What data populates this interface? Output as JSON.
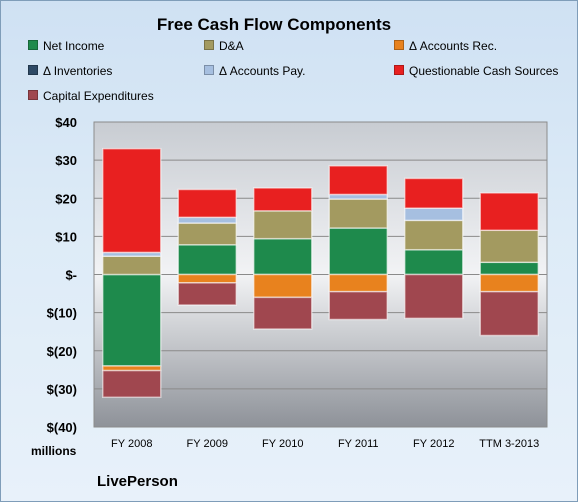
{
  "chart_data": {
    "type": "bar",
    "stacked": true,
    "title": "Free Cash Flow Components",
    "units_label": "millions",
    "company": "LivePerson",
    "categories": [
      "FY 2008",
      "FY 2009",
      "FY 2010",
      "FY 2011",
      "FY 2012",
      "TTM 3-2013"
    ],
    "ylim": [
      -40,
      40
    ],
    "y_ticks": [
      40,
      30,
      20,
      10,
      0,
      -10,
      -20,
      -30,
      -40
    ],
    "y_tick_labels": [
      "$40",
      "$30",
      "$20",
      "$10",
      "$-",
      "$(10)",
      "$(20)",
      "$(30)",
      "$(40)"
    ],
    "grid": true,
    "legend_position": "top",
    "series": [
      {
        "name": "Net Income",
        "color": "#1e8a4c",
        "values": [
          -24,
          7.8,
          9.4,
          12.2,
          6.5,
          3.2
        ]
      },
      {
        "name": "D&A",
        "color": "#a39a60",
        "values": [
          4.8,
          5.7,
          7.3,
          7.6,
          7.7,
          8.4
        ]
      },
      {
        "name": "Δ Accounts Rec.",
        "color": "#e8821e",
        "values": [
          -1.2,
          -2.2,
          -6,
          -4.5,
          0,
          -4.5
        ]
      },
      {
        "name": "Δ Inventories",
        "color": "#2e4a66",
        "values": [
          0,
          0,
          0,
          0,
          0,
          0
        ]
      },
      {
        "name": "Δ Accounts Pay.",
        "color": "#a6bfe0",
        "values": [
          1,
          1.5,
          0,
          1.2,
          3.2,
          0
        ]
      },
      {
        "name": "Questionable Cash Sources",
        "color": "#e82020",
        "values": [
          27.2,
          7.3,
          6,
          7.5,
          7.8,
          9.8
        ]
      },
      {
        "name": "Capital Expenditures",
        "color": "#a0474f",
        "values": [
          -7,
          -5.8,
          -8.3,
          -7.3,
          -11.5,
          -11.5
        ]
      }
    ]
  }
}
